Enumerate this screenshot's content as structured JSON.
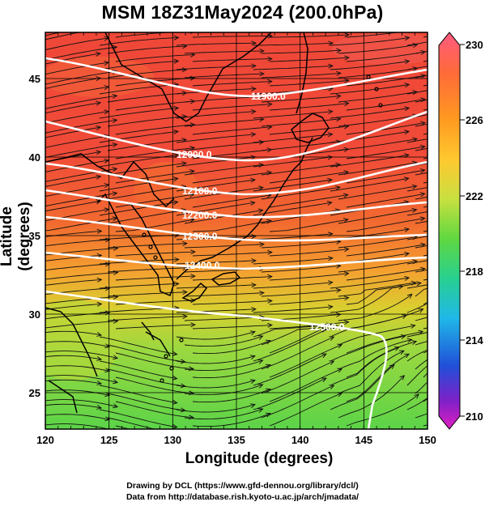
{
  "title": "MSM 18Z31May2024 (200.0hPa)",
  "xaxis": {
    "label": "Longitude (degrees)",
    "ticks": [
      120,
      125,
      130,
      135,
      140,
      145,
      150
    ]
  },
  "yaxis": {
    "label": "Latitude  (degrees)",
    "ticks": [
      25,
      30,
      35,
      40,
      45
    ]
  },
  "colorbar": {
    "ticks": [
      230,
      226,
      222,
      218,
      214,
      210
    ],
    "colors": [
      "#ff5a80",
      "#ff6a3a",
      "#ff9a20",
      "#ffc830",
      "#c8e040",
      "#60d840",
      "#28d090",
      "#20b8e8",
      "#2050d8",
      "#8020c8",
      "#e020c0"
    ]
  },
  "contours": [
    {
      "label": "11900.0"
    },
    {
      "label": "12000.0"
    },
    {
      "label": "12100.0"
    },
    {
      "label": "12200.0"
    },
    {
      "label": "12300.0"
    },
    {
      "label": "12400.0"
    },
    {
      "label": "12500.0"
    }
  ],
  "credits": {
    "line1": "Drawing by DCL (https://www.gfd-dennou.org/library/dcl/)",
    "line2": "Data from http://database.rish.kyoto-u.ac.jp/arch/jmadata/"
  }
}
